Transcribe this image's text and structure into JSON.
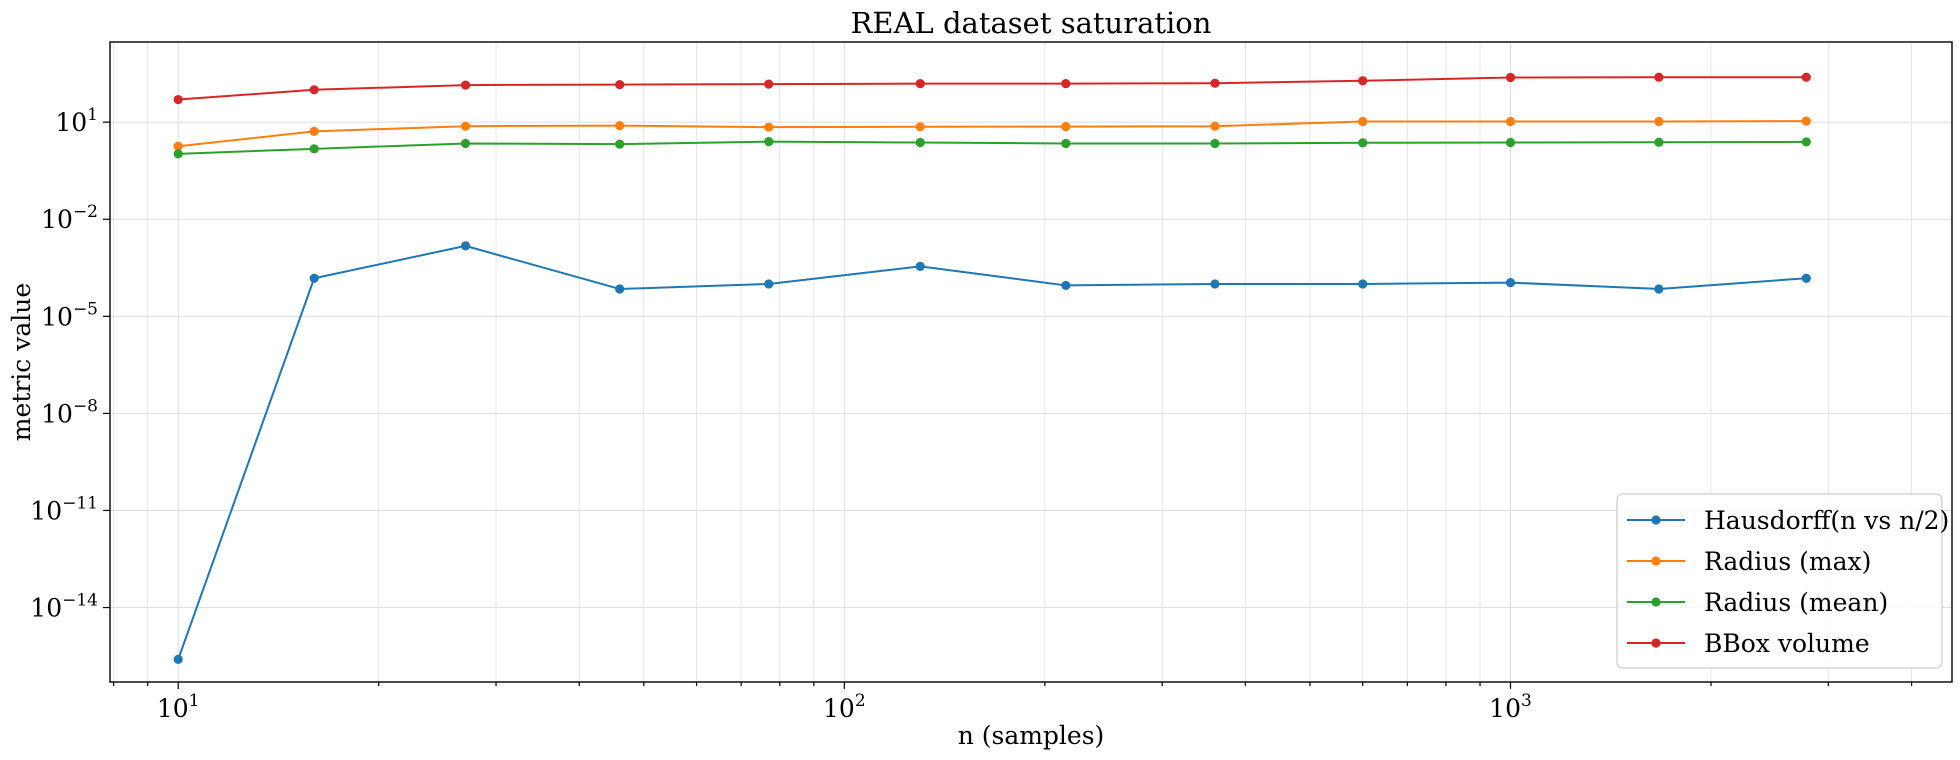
{
  "chart_data": {
    "type": "line",
    "title": "REAL dataset saturation",
    "xlabel": "n (samples)",
    "ylabel": "metric value",
    "xscale": "log",
    "yscale": "log",
    "xlim": [
      7.9,
      4600
    ],
    "ylim": [
      5e-17,
      3000
    ],
    "grid": true,
    "legend_loc": "lower right",
    "x_ticks": [
      {
        "value": 10,
        "base": "10",
        "exp": "1"
      },
      {
        "value": 100,
        "base": "10",
        "exp": "2"
      },
      {
        "value": 1000,
        "base": "10",
        "exp": "3"
      }
    ],
    "y_ticks": [
      {
        "value": 10,
        "base": "10",
        "exp": "1"
      },
      {
        "value": 0.01,
        "base": "10",
        "exp": "−2"
      },
      {
        "value": 1e-05,
        "base": "10",
        "exp": "−5"
      },
      {
        "value": 1e-08,
        "base": "10",
        "exp": "−8"
      },
      {
        "value": 1e-11,
        "base": "10",
        "exp": "−11"
      },
      {
        "value": 1e-14,
        "base": "10",
        "exp": "−14"
      }
    ],
    "x": [
      10,
      16,
      27,
      46,
      77,
      130,
      215,
      360,
      600,
      1000,
      1670,
      2780
    ],
    "series": [
      {
        "name": "Hausdorff(n vs n/2)",
        "color": "#1f77b4",
        "values": [
          2.5e-16,
          0.00015,
          0.0015,
          7e-05,
          0.0001,
          0.00035,
          9e-05,
          0.0001,
          0.0001,
          0.00011,
          7e-05,
          0.00015
        ]
      },
      {
        "name": "Radius (max)",
        "color": "#ff7f0e",
        "values": [
          1.8,
          5.2,
          7.5,
          7.8,
          7.0,
          7.2,
          7.3,
          7.5,
          10.5,
          10.5,
          10.5,
          10.8
        ]
      },
      {
        "name": "Radius (mean)",
        "color": "#2ca02c",
        "values": [
          1.05,
          1.5,
          2.2,
          2.1,
          2.5,
          2.35,
          2.2,
          2.2,
          2.3,
          2.35,
          2.4,
          2.45
        ]
      },
      {
        "name": "BBox volume",
        "color": "#d62728",
        "values": [
          50,
          100,
          140,
          145,
          150,
          155,
          155,
          160,
          190,
          240,
          245,
          245
        ]
      }
    ]
  }
}
